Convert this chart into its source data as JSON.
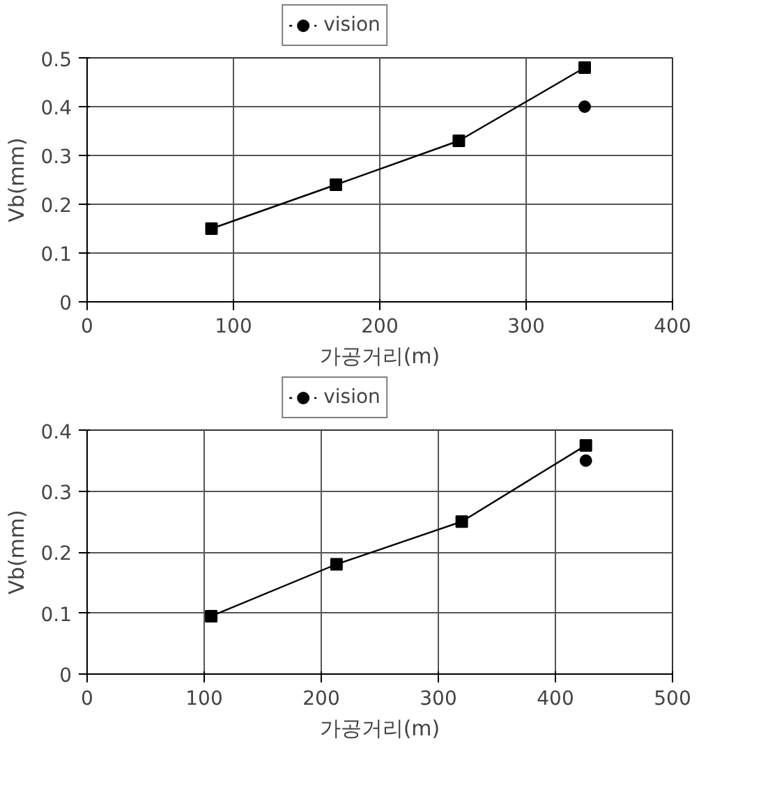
{
  "chart_data": [
    {
      "type": "line",
      "xlabel": "가공거리(m)",
      "ylabel": "Vb(mm)",
      "xlim": [
        0,
        400
      ],
      "xticks": [
        0,
        100,
        200,
        300,
        400
      ],
      "ylim": [
        0,
        0.5
      ],
      "yticks": [
        0,
        0.1,
        0.2,
        0.3,
        0.4,
        0.5
      ],
      "grid": true,
      "legend": "top",
      "series": [
        {
          "color": "#000000",
          "marker": "square",
          "line_style": "solid",
          "x": [
            85,
            170,
            254,
            340
          ],
          "values": [
            0.15,
            0.24,
            0.33,
            0.48
          ]
        },
        {
          "name": "vision",
          "color": "#000000",
          "marker": "circle",
          "line_style": "dotted",
          "x": [
            340
          ],
          "values": [
            0.4
          ]
        }
      ]
    },
    {
      "type": "line",
      "xlabel": "가공거리(m)",
      "ylabel": "Vb(mm)",
      "xlim": [
        0,
        500
      ],
      "xticks": [
        0,
        100,
        200,
        300,
        400,
        500
      ],
      "ylim": [
        0,
        0.4
      ],
      "yticks": [
        0,
        0.1,
        0.2,
        0.3,
        0.4
      ],
      "grid": true,
      "legend": "top",
      "series": [
        {
          "color": "#000000",
          "marker": "square",
          "line_style": "solid",
          "x": [
            106,
            213,
            320,
            426
          ],
          "values": [
            0.095,
            0.18,
            0.25,
            0.375
          ]
        },
        {
          "name": "vision",
          "color": "#000000",
          "marker": "circle",
          "line_style": "dotted",
          "x": [
            426
          ],
          "values": [
            0.35
          ]
        }
      ]
    }
  ]
}
